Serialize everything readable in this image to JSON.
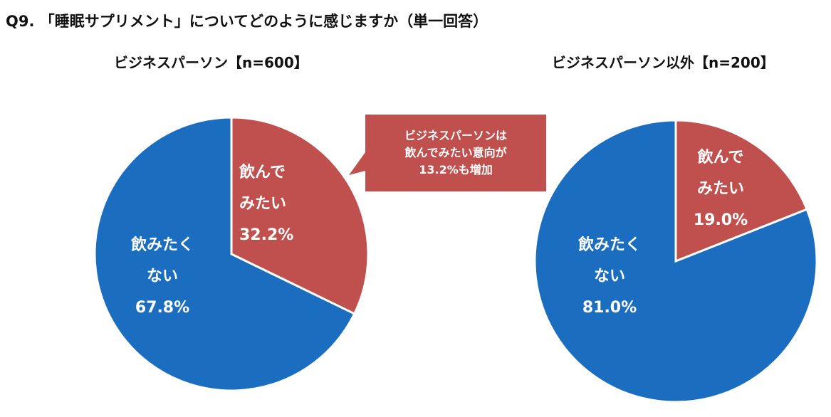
{
  "title": "Q9. 「睡眠サプリメント」についてどのように感じますか（単一回答）",
  "colors": {
    "blue": "#1B6EBF",
    "red": "#C0504D",
    "callout": "#C0504D"
  },
  "callout": {
    "lines": [
      "ビジネスパーソンは",
      "飲んでみたい意向が",
      "13.2%も増加"
    ]
  },
  "chart_data": [
    {
      "type": "pie",
      "title": "ビジネスパーソン【n=600】",
      "slices": [
        {
          "name": "飲んでみたい",
          "label_lines": [
            "飲んで",
            "みたい"
          ],
          "value": 32.2,
          "value_label": "32.2%",
          "color": "#C0504D"
        },
        {
          "name": "飲みたくない",
          "label_lines": [
            "飲みたく",
            "ない"
          ],
          "value": 67.8,
          "value_label": "67.8%",
          "color": "#1B6EBF"
        }
      ]
    },
    {
      "type": "pie",
      "title": "ビジネスパーソン以外【n=200】",
      "slices": [
        {
          "name": "飲んでみたい",
          "label_lines": [
            "飲んで",
            "みたい"
          ],
          "value": 19.0,
          "value_label": "19.0%",
          "color": "#C0504D"
        },
        {
          "name": "飲みたくない",
          "label_lines": [
            "飲みたく",
            "ない"
          ],
          "value": 81.0,
          "value_label": "81.0%",
          "color": "#1B6EBF"
        }
      ]
    }
  ]
}
